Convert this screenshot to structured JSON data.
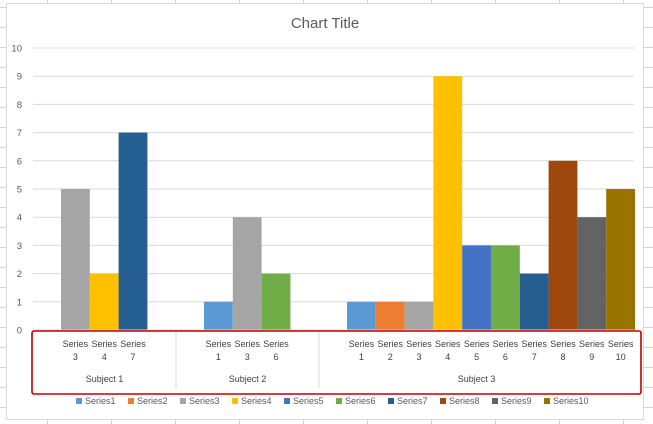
{
  "chart_data": {
    "type": "bar",
    "title": "Chart Title",
    "ylim": [
      0,
      10
    ],
    "yticks": [
      "0",
      "1",
      "2",
      "3",
      "4",
      "5",
      "6",
      "7",
      "8",
      "9",
      "10"
    ],
    "grid": true,
    "legend": "bottom",
    "groups": [
      {
        "label": "Subject 1",
        "bars": [
          {
            "series": "Series3",
            "line1": "Series",
            "line2": "3",
            "value": 5
          },
          {
            "series": "Series4",
            "line1": "Series",
            "line2": "4",
            "value": 2
          },
          {
            "series": "Series7",
            "line1": "Series",
            "line2": "7",
            "value": 7
          }
        ]
      },
      {
        "label": "Subject 2",
        "bars": [
          {
            "series": "Series1",
            "line1": "Series",
            "line2": "1",
            "value": 1
          },
          {
            "series": "Series3",
            "line1": "Series",
            "line2": "3",
            "value": 4
          },
          {
            "series": "Series6",
            "line1": "Series",
            "line2": "6",
            "value": 2
          }
        ]
      },
      {
        "label": "Subject 3",
        "bars": [
          {
            "series": "Series1",
            "line1": "Series",
            "line2": "1",
            "value": 1
          },
          {
            "series": "Series2",
            "line1": "Series",
            "line2": "2",
            "value": 1
          },
          {
            "series": "Series3",
            "line1": "Series",
            "line2": "3",
            "value": 1
          },
          {
            "series": "Series4",
            "line1": "Series",
            "line2": "4",
            "value": 9
          },
          {
            "series": "Series5",
            "line1": "Series",
            "line2": "5",
            "value": 3
          },
          {
            "series": "Series6",
            "line1": "Series",
            "line2": "6",
            "value": 3
          },
          {
            "series": "Series7",
            "line1": "Series",
            "line2": "7",
            "value": 2
          },
          {
            "series": "Series8",
            "line1": "Series",
            "line2": "8",
            "value": 6
          },
          {
            "series": "Series9",
            "line1": "Series",
            "line2": "9",
            "value": 4
          },
          {
            "series": "Series10",
            "line1": "Series",
            "line2": "10",
            "value": 5
          }
        ]
      }
    ],
    "legend_entries": [
      "Series1",
      "Series2",
      "Series3",
      "Series4",
      "Series5",
      "Series6",
      "Series7",
      "Series8",
      "Series9",
      "Series10"
    ],
    "colors": {
      "Series1": "#5b9bd5",
      "Series2": "#ed7d31",
      "Series3": "#a5a5a5",
      "Series4": "#ffc000",
      "Series5": "#4472c4",
      "Series6": "#70ad47",
      "Series7": "#255e91",
      "Series8": "#9e480e",
      "Series9": "#636363",
      "Series10": "#997300"
    },
    "highlight_color": "#c00000"
  }
}
